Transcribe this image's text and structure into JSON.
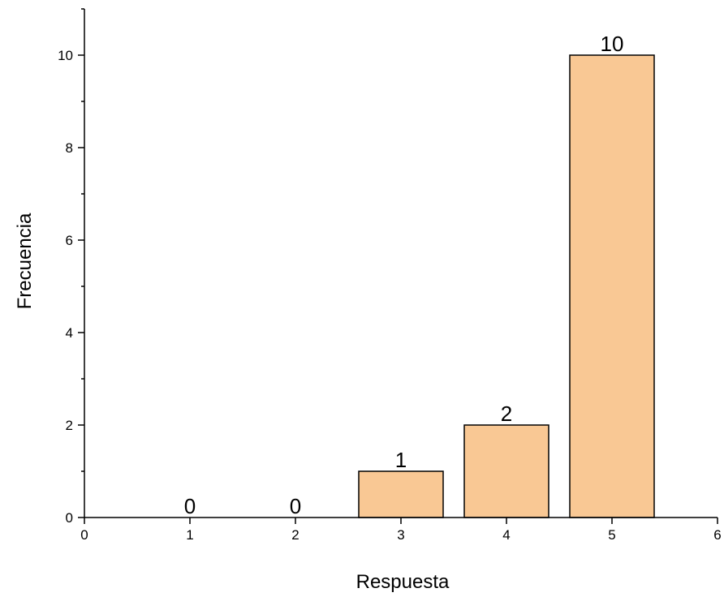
{
  "chart_data": {
    "type": "bar",
    "x": [
      1,
      2,
      3,
      4,
      5
    ],
    "values": [
      0,
      0,
      1,
      2,
      10
    ],
    "data_labels": [
      "0",
      "0",
      "1",
      "2",
      "10"
    ],
    "xlabel": "Respuesta",
    "ylabel": "Frecuencia",
    "xlim": [
      0,
      6
    ],
    "ylim": [
      0,
      11
    ],
    "x_ticks": [
      0,
      1,
      2,
      3,
      4,
      5,
      6
    ],
    "y_ticks": [
      0,
      2,
      4,
      6,
      8,
      10
    ],
    "y_minor_ticks": [
      1,
      3,
      5,
      7,
      9,
      11
    ],
    "grid": false,
    "bar_color": "#f9c894",
    "bar_edge_color": "#000000"
  }
}
